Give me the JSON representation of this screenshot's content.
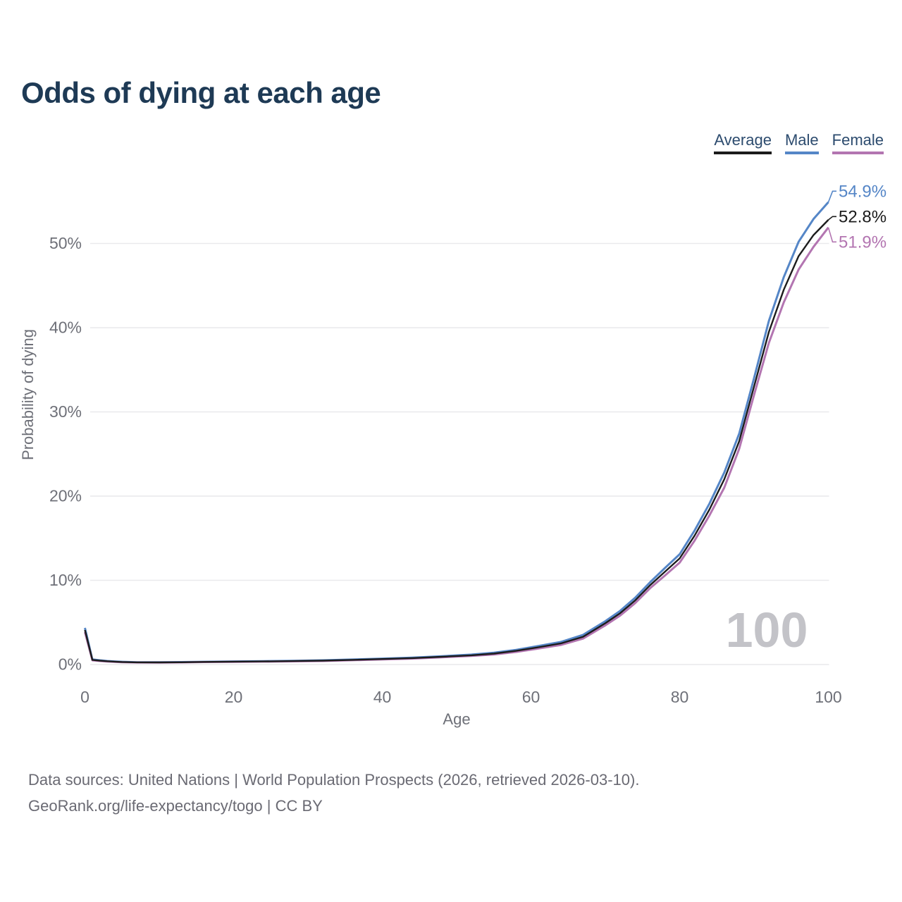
{
  "header": {
    "title": "Odds of dying at each age"
  },
  "legend": {
    "items": [
      {
        "id": "average",
        "label": "Average",
        "color": "#1c1c1c"
      },
      {
        "id": "male",
        "label": "Male",
        "color": "#5586c7"
      },
      {
        "id": "female",
        "label": "Female",
        "color": "#b375b1"
      }
    ]
  },
  "chart_data": {
    "type": "line",
    "title": "Odds of dying at each age",
    "xlabel": "Age",
    "ylabel": "Probability of dying",
    "xlim": [
      0,
      100
    ],
    "ylim": [
      0,
      56
    ],
    "grid": "horizontal",
    "legend_position": "top-right",
    "watermark": "100",
    "x_ticks": [
      {
        "v": 0,
        "label": "0"
      },
      {
        "v": 20,
        "label": "20"
      },
      {
        "v": 40,
        "label": "40"
      },
      {
        "v": 60,
        "label": "60"
      },
      {
        "v": 80,
        "label": "80"
      },
      {
        "v": 100,
        "label": "100"
      }
    ],
    "y_ticks": [
      {
        "v": 0,
        "label": "0%"
      },
      {
        "v": 10,
        "label": "10%"
      },
      {
        "v": 20,
        "label": "20%"
      },
      {
        "v": 30,
        "label": "30%"
      },
      {
        "v": 40,
        "label": "40%"
      },
      {
        "v": 50,
        "label": "50%"
      }
    ],
    "x": [
      0,
      1,
      2,
      3,
      4,
      5,
      7,
      10,
      13,
      16,
      20,
      24,
      28,
      32,
      36,
      40,
      44,
      48,
      52,
      55,
      58,
      61,
      64,
      67,
      70,
      72,
      74,
      76,
      78,
      80,
      82,
      84,
      86,
      88,
      90,
      92,
      94,
      96,
      98,
      100
    ],
    "series": [
      {
        "name": "Male",
        "color": "#5586c7",
        "stroke_width": 3,
        "end_label": "54.9%",
        "values": [
          4.35,
          0.6,
          0.5,
          0.42,
          0.37,
          0.33,
          0.28,
          0.27,
          0.29,
          0.33,
          0.37,
          0.4,
          0.44,
          0.5,
          0.59,
          0.7,
          0.82,
          0.99,
          1.18,
          1.4,
          1.74,
          2.2,
          2.68,
          3.52,
          5.15,
          6.38,
          7.92,
          9.75,
          11.45,
          13.1,
          15.9,
          19.1,
          22.8,
          27.4,
          34.0,
          40.8,
          46.0,
          50.2,
          52.9,
          54.9
        ]
      },
      {
        "name": "Female",
        "color": "#b375b1",
        "stroke_width": 3,
        "end_label": "51.9%",
        "values": [
          3.85,
          0.5,
          0.42,
          0.36,
          0.31,
          0.28,
          0.24,
          0.23,
          0.25,
          0.29,
          0.31,
          0.34,
          0.38,
          0.42,
          0.51,
          0.6,
          0.7,
          0.85,
          1.02,
          1.2,
          1.5,
          1.9,
          2.32,
          3.08,
          4.65,
          5.82,
          7.28,
          9.05,
          10.55,
          12.1,
          14.7,
          17.7,
          21.0,
          25.6,
          32.0,
          38.2,
          43.0,
          46.9,
          49.6,
          51.9
        ]
      },
      {
        "name": "Average",
        "color": "#1c1c1c",
        "stroke_width": 2.4,
        "end_label": "52.8%",
        "values": [
          4.1,
          0.55,
          0.46,
          0.39,
          0.34,
          0.3,
          0.26,
          0.25,
          0.27,
          0.31,
          0.34,
          0.37,
          0.41,
          0.46,
          0.55,
          0.65,
          0.76,
          0.92,
          1.1,
          1.3,
          1.62,
          2.05,
          2.5,
          3.3,
          4.9,
          6.1,
          7.6,
          9.4,
          11.0,
          12.6,
          15.3,
          18.4,
          22.0,
          26.5,
          33.0,
          39.5,
          44.5,
          48.5,
          51.0,
          52.8
        ]
      }
    ]
  },
  "footer": {
    "line1": "Data sources: United Nations | World Population Prospects (2026, retrieved 2026-03-10).",
    "line2": "GeoRank.org/life-expectancy/togo | CC BY"
  }
}
